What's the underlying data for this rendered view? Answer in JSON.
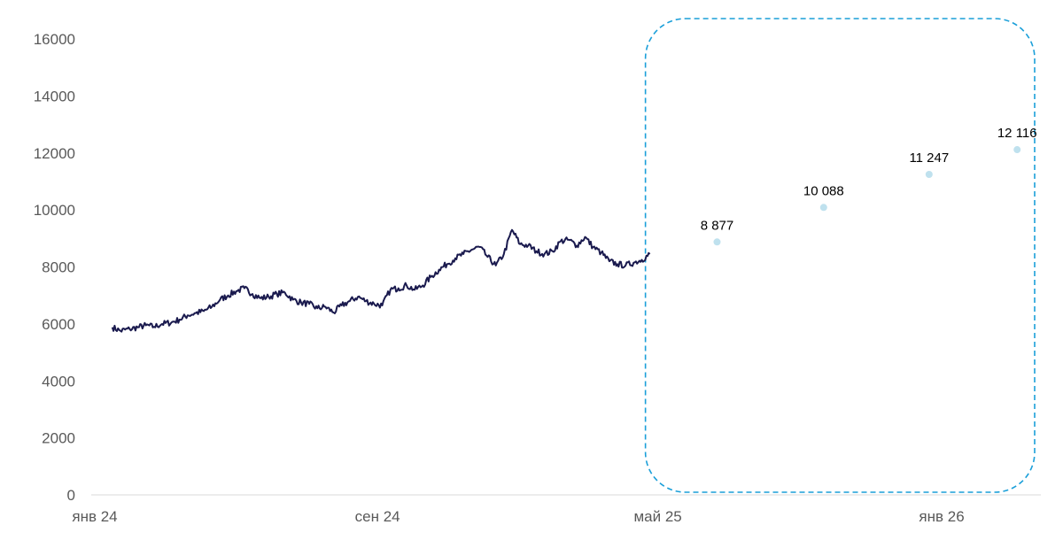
{
  "chart_data": {
    "type": "line",
    "y_ticks": [
      "0",
      "2000",
      "4000",
      "6000",
      "8000",
      "10000",
      "12000",
      "14000",
      "16000"
    ],
    "ylim": [
      0,
      16000
    ],
    "grid": false,
    "x_ticks": [
      {
        "label": "янв 24",
        "date": "2024-01-01"
      },
      {
        "label": "сен 24",
        "date": "2024-09-01"
      },
      {
        "label": "май 25",
        "date": "2025-05-01"
      },
      {
        "label": "янв 26",
        "date": "2026-01-01"
      }
    ],
    "xlim": [
      "2024-01-01",
      "2026-03-10"
    ],
    "series": [
      {
        "kind": "line",
        "color": "#1a1a4e",
        "points": [
          [
            "2024-01-10",
            5880
          ],
          [
            "2024-01-17",
            5760
          ],
          [
            "2024-01-25",
            5820
          ],
          [
            "2024-02-01",
            5880
          ],
          [
            "2024-02-08",
            5950
          ],
          [
            "2024-02-15",
            5900
          ],
          [
            "2024-02-22",
            6000
          ],
          [
            "2024-03-01",
            6050
          ],
          [
            "2024-03-08",
            6150
          ],
          [
            "2024-03-15",
            6300
          ],
          [
            "2024-03-22",
            6380
          ],
          [
            "2024-03-29",
            6450
          ],
          [
            "2024-04-05",
            6600
          ],
          [
            "2024-04-12",
            6850
          ],
          [
            "2024-04-19",
            7000
          ],
          [
            "2024-04-26",
            7150
          ],
          [
            "2024-05-03",
            7250
          ],
          [
            "2024-05-10",
            7050
          ],
          [
            "2024-05-17",
            6900
          ],
          [
            "2024-05-24",
            6950
          ],
          [
            "2024-05-31",
            7050
          ],
          [
            "2024-06-07",
            7100
          ],
          [
            "2024-06-14",
            6850
          ],
          [
            "2024-06-21",
            6750
          ],
          [
            "2024-06-28",
            6700
          ],
          [
            "2024-07-05",
            6550
          ],
          [
            "2024-07-12",
            6600
          ],
          [
            "2024-07-19",
            6400
          ],
          [
            "2024-07-26",
            6650
          ],
          [
            "2024-08-02",
            6800
          ],
          [
            "2024-08-09",
            6950
          ],
          [
            "2024-08-16",
            6800
          ],
          [
            "2024-08-23",
            6700
          ],
          [
            "2024-08-30",
            6650
          ],
          [
            "2024-09-06",
            7200
          ],
          [
            "2024-09-13",
            7250
          ],
          [
            "2024-09-20",
            7350
          ],
          [
            "2024-09-27",
            7200
          ],
          [
            "2024-10-04",
            7350
          ],
          [
            "2024-10-11",
            7650
          ],
          [
            "2024-10-18",
            7900
          ],
          [
            "2024-10-25",
            8100
          ],
          [
            "2024-11-01",
            8300
          ],
          [
            "2024-11-08",
            8450
          ],
          [
            "2024-11-15",
            8600
          ],
          [
            "2024-11-22",
            8700
          ],
          [
            "2024-11-29",
            8350
          ],
          [
            "2024-12-06",
            8050
          ],
          [
            "2024-12-13",
            8450
          ],
          [
            "2024-12-20",
            9300
          ],
          [
            "2024-12-27",
            8800
          ],
          [
            "2025-01-03",
            8750
          ],
          [
            "2025-01-10",
            8550
          ],
          [
            "2025-01-17",
            8450
          ],
          [
            "2025-01-24",
            8550
          ],
          [
            "2025-01-31",
            8900
          ],
          [
            "2025-02-07",
            8950
          ],
          [
            "2025-02-14",
            8750
          ],
          [
            "2025-02-21",
            9050
          ],
          [
            "2025-02-28",
            8700
          ],
          [
            "2025-03-07",
            8500
          ],
          [
            "2025-03-14",
            8200
          ],
          [
            "2025-03-21",
            8100
          ],
          [
            "2025-03-28",
            8050
          ],
          [
            "2025-04-04",
            8150
          ],
          [
            "2025-04-11",
            8250
          ],
          [
            "2025-04-18",
            8450
          ]
        ]
      },
      {
        "kind": "points",
        "color": "#bfe1ee",
        "points": [
          {
            "date": "2025-06-15",
            "value": 8877,
            "label": "8 877"
          },
          {
            "date": "2025-09-15",
            "value": 10088,
            "label": "10 088"
          },
          {
            "date": "2025-12-15",
            "value": 11247,
            "label": "11 247"
          },
          {
            "date": "2026-03-01",
            "value": 12116,
            "label": "12 116"
          }
        ]
      }
    ],
    "annotation": {
      "shape": "dashed-rounded-rectangle",
      "color": "#1a9fd9",
      "from": "2025-05-01",
      "to": "2026-03-10"
    }
  }
}
